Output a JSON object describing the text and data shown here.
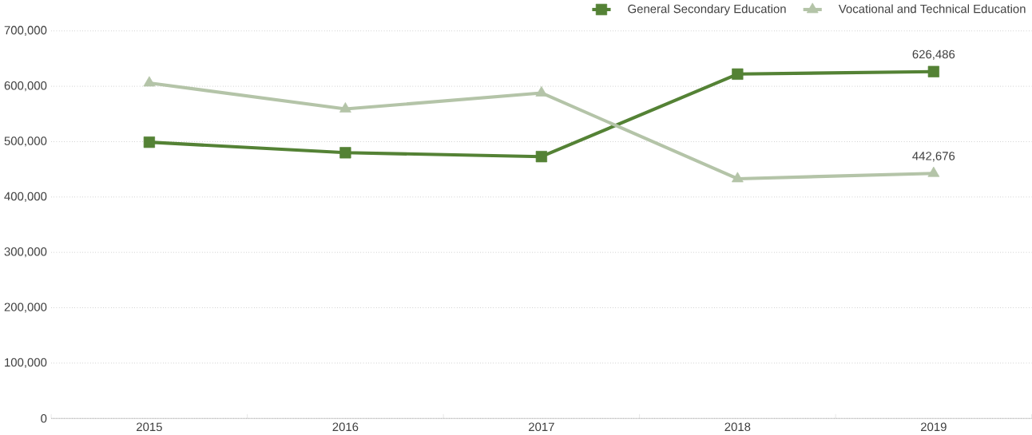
{
  "chart_data": {
    "type": "line",
    "categories": [
      "2015",
      "2016",
      "2017",
      "2018",
      "2019"
    ],
    "series": [
      {
        "name": "General Secondary Education",
        "color": "#548235",
        "marker": "square",
        "values": [
          499000,
          480000,
          473000,
          622000,
          626486
        ],
        "value_labels": [
          null,
          null,
          null,
          null,
          "626,486"
        ]
      },
      {
        "name": "Vocational and Technical Education",
        "color": "#b4c4a8",
        "marker": "triangle",
        "values": [
          606000,
          559000,
          588000,
          433000,
          442676
        ],
        "value_labels": [
          null,
          null,
          null,
          null,
          "442,676"
        ]
      }
    ],
    "ylim": [
      0,
      700000
    ],
    "yticks": [
      {
        "value": 0,
        "label": "0"
      },
      {
        "value": 100000,
        "label": "100,000"
      },
      {
        "value": 200000,
        "label": "200,000"
      },
      {
        "value": 300000,
        "label": "300,000"
      },
      {
        "value": 400000,
        "label": "400,000"
      },
      {
        "value": 500000,
        "label": "500,000"
      },
      {
        "value": 600000,
        "label": "600,000"
      },
      {
        "value": 700000,
        "label": "700,000"
      }
    ],
    "grid": "y",
    "legend": "top right",
    "line_style": "solid"
  }
}
